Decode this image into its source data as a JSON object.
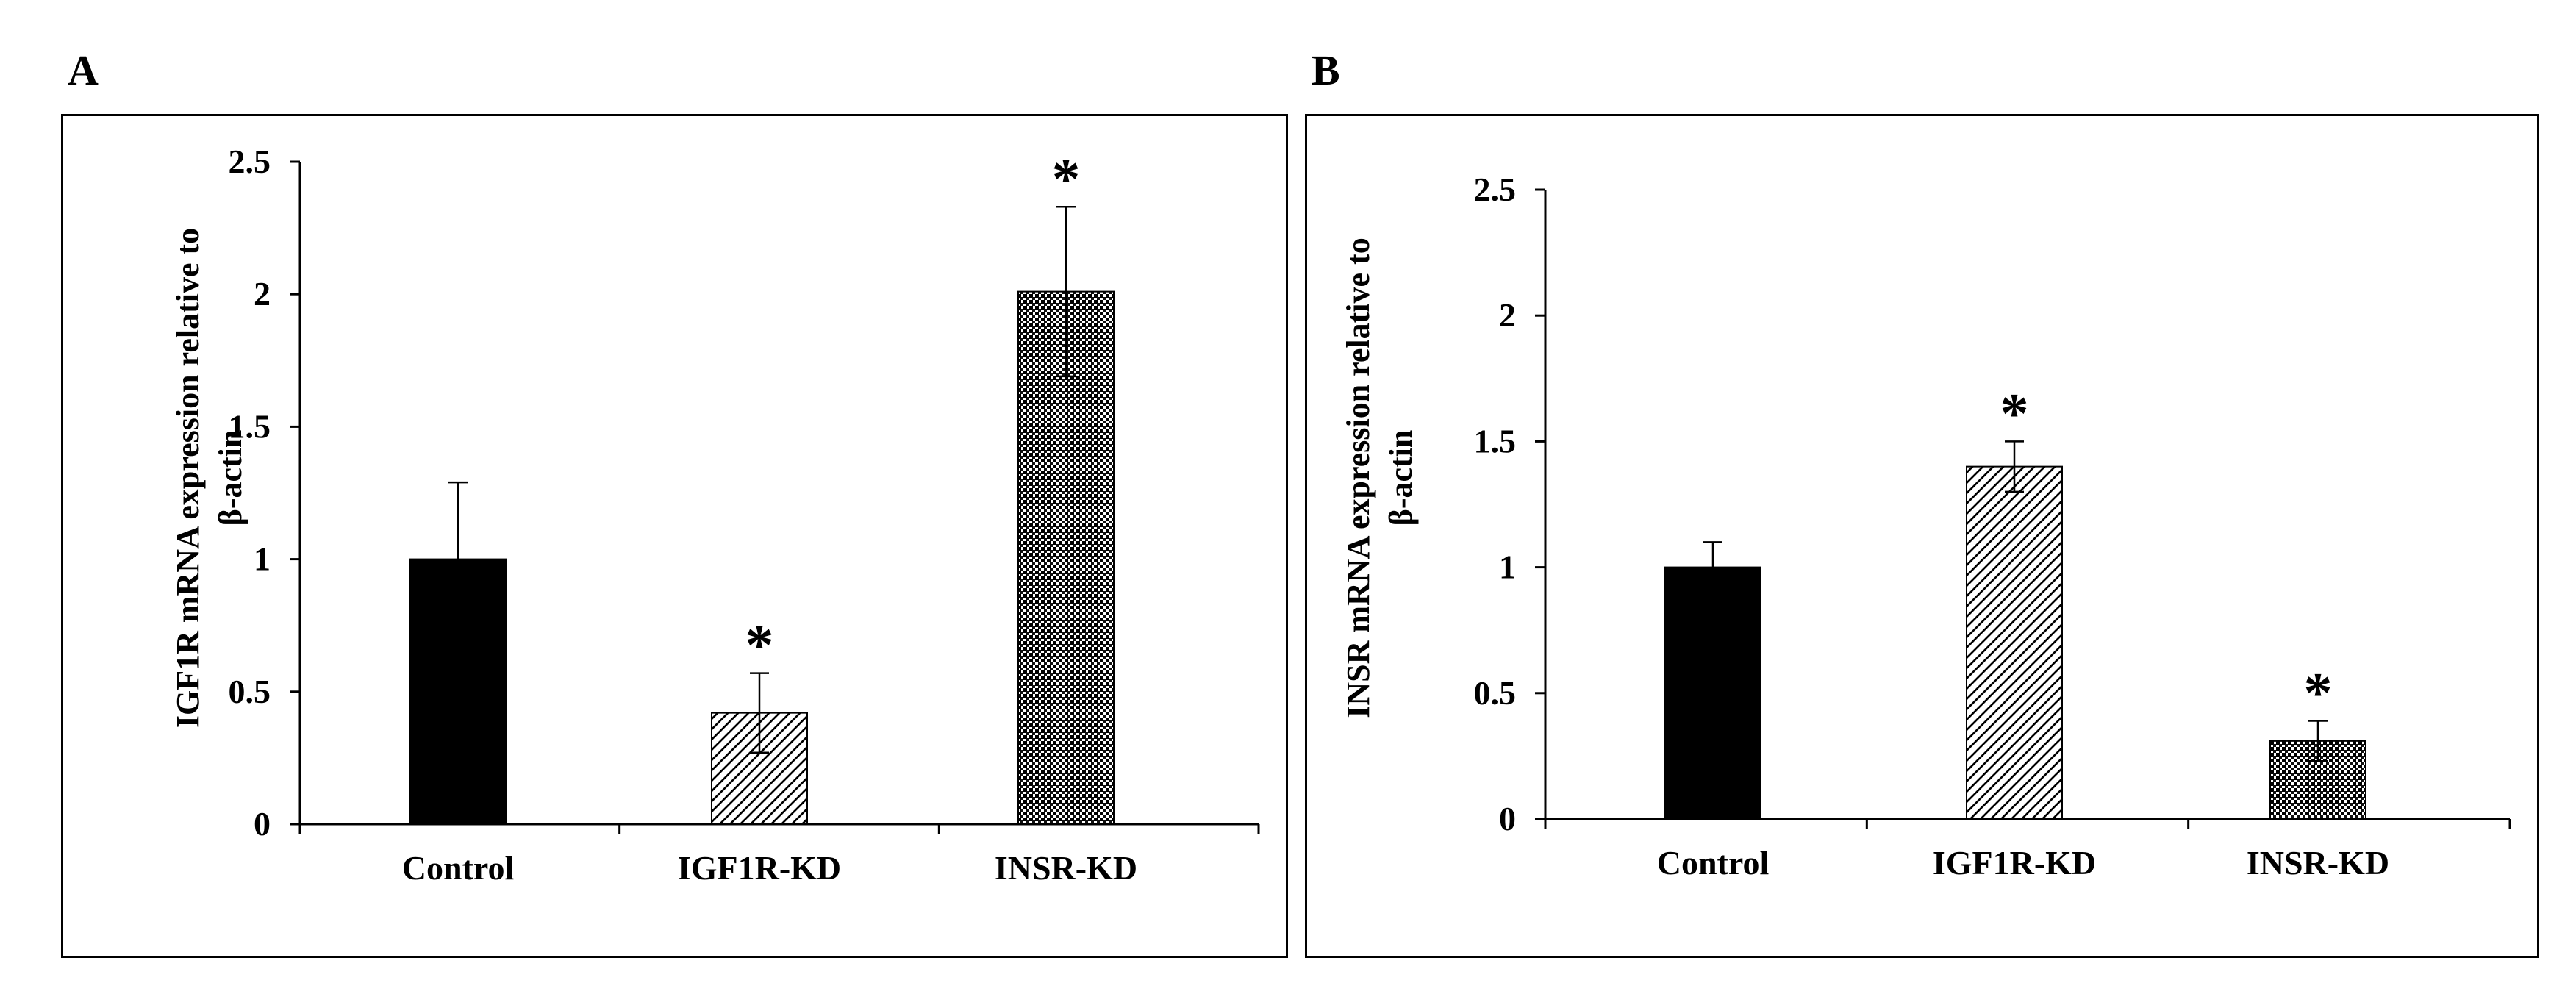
{
  "panels": [
    {
      "letter": "A"
    },
    {
      "letter": "B"
    }
  ],
  "colors": {
    "axis": "#000000",
    "control_fill": "#000000",
    "background": "#ffffff"
  },
  "chart_data": [
    {
      "type": "bar",
      "panel": "A",
      "title": "",
      "xlabel": "",
      "ylabel_lines": [
        "IGF1R mRNA expression relative to",
        "β-actin"
      ],
      "categories": [
        "Control",
        "IGF1R-KD",
        "INSR-KD"
      ],
      "values": [
        1.0,
        0.42,
        2.01
      ],
      "errors": [
        0.29,
        0.15,
        0.32
      ],
      "significance": [
        "",
        "*",
        "*"
      ],
      "patterns": [
        "solid",
        "diagonal-hatch",
        "dense-dots"
      ],
      "ylim": [
        0,
        2.5
      ],
      "yticks": [
        0,
        0.5,
        1,
        1.5,
        2,
        2.5
      ],
      "ytick_labels": [
        "0",
        "0.5",
        "1",
        "1.5",
        "2",
        "2.5"
      ],
      "grid": false
    },
    {
      "type": "bar",
      "panel": "B",
      "title": "",
      "xlabel": "",
      "ylabel_lines": [
        "INSR mRNA expression relative to",
        "β-actin"
      ],
      "categories": [
        "Control",
        "IGF1R-KD",
        "INSR-KD"
      ],
      "values": [
        1.0,
        1.4,
        0.31
      ],
      "errors": [
        0.1,
        0.1,
        0.08
      ],
      "significance": [
        "",
        "*",
        "*"
      ],
      "patterns": [
        "solid",
        "diagonal-hatch",
        "dense-dots"
      ],
      "ylim": [
        0,
        2.5
      ],
      "yticks": [
        0,
        0.5,
        1,
        1.5,
        2,
        2.5
      ],
      "ytick_labels": [
        "0",
        "0.5",
        "1",
        "1.5",
        "2",
        "2.5"
      ],
      "grid": false
    }
  ]
}
